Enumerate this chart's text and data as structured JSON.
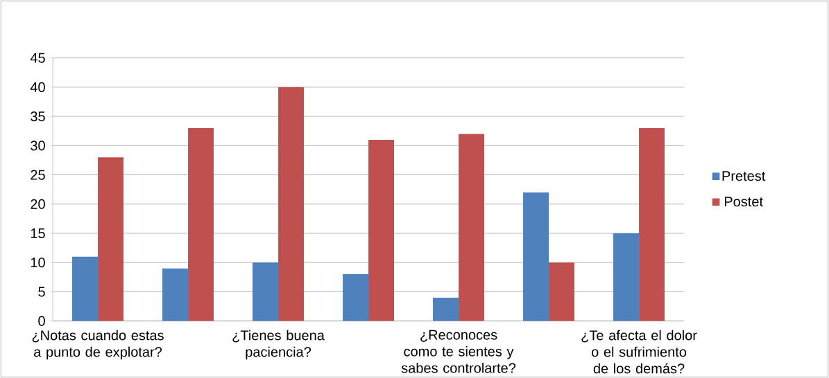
{
  "chart_data": {
    "type": "bar",
    "categories": [
      "¿Notas cuando estas a punto de explotar?",
      null,
      "¿Tienes buena paciencia?",
      null,
      "¿Reconoces como te sientes y sabes controlarte?",
      null,
      "¿Te afecta el dolor o el sufrimiento de los demás?"
    ],
    "series": [
      {
        "name": "Pretest",
        "color": "#4f81bd",
        "values": [
          11,
          9,
          10,
          8,
          4,
          22,
          15
        ]
      },
      {
        "name": "Postet",
        "color": "#c0504d",
        "values": [
          28,
          33,
          40,
          31,
          32,
          10,
          33
        ]
      }
    ],
    "ylim": [
      0,
      45
    ],
    "yticks": [
      0,
      5,
      10,
      15,
      20,
      25,
      30,
      35,
      40,
      45
    ],
    "grid": "y",
    "legend": "right"
  }
}
